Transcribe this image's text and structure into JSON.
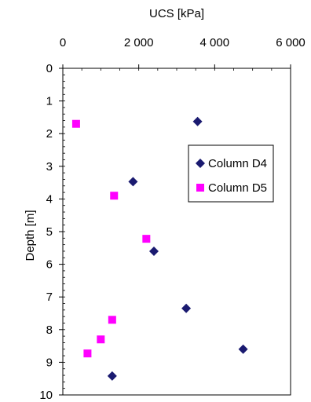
{
  "chart_data": {
    "type": "scatter",
    "title": "",
    "xlabel": "UCS [kPa]",
    "ylabel": "Depth [m]",
    "xlim": [
      0,
      6000
    ],
    "ylim": [
      0,
      10
    ],
    "y_inverted": true,
    "x_axis_position": "top",
    "grid": false,
    "legend_position": "right",
    "x_ticks": [
      0,
      2000,
      4000,
      6000
    ],
    "x_tick_labels": [
      "0",
      "2 000",
      "4 000",
      "6 000"
    ],
    "y_ticks": [
      0,
      1,
      2,
      3,
      4,
      5,
      6,
      7,
      8,
      9,
      10
    ],
    "y_tick_labels": [
      "0",
      "1",
      "2",
      "3",
      "4",
      "5",
      "6",
      "7",
      "8",
      "9",
      "10"
    ],
    "series": [
      {
        "name": "Column D4",
        "marker": "diamond",
        "color": "#1a1a70",
        "x": [
          3550,
          1850,
          2400,
          3250,
          4750,
          1300
        ],
        "y": [
          1.63,
          3.47,
          5.6,
          7.35,
          8.6,
          9.42
        ]
      },
      {
        "name": "Column D5",
        "marker": "square",
        "color": "#ff00ff",
        "x": [
          350,
          1350,
          2200,
          1300,
          1000,
          650
        ],
        "y": [
          1.7,
          3.9,
          5.22,
          7.7,
          8.3,
          8.73
        ]
      }
    ]
  }
}
